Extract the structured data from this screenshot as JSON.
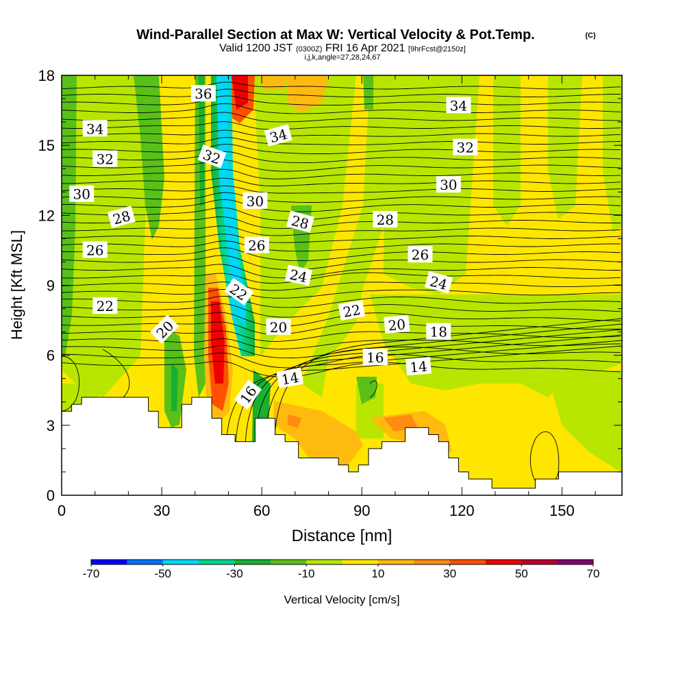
{
  "title": {
    "main": "Wind-Parallel Section at Max W: Vertical Velocity & Pot.Temp.",
    "copyright": "(C)",
    "valid_prefix": "Valid 1200 JST",
    "valid_utc": "(0300Z)",
    "valid_date": "FRI 16 Apr 2021",
    "forecast": "[9hrFcst@2150z]",
    "indices": "i,j,k,angle=27,28,24,67"
  },
  "chart_data": {
    "type": "heatmap",
    "xlabel": "Distance [nm]",
    "ylabel": "Height [Kft MSL]",
    "xlim": [
      0,
      168
    ],
    "ylim": [
      0,
      18
    ],
    "x_ticks": [
      "0",
      "30",
      "60",
      "90",
      "120",
      "150"
    ],
    "y_ticks": [
      "0",
      "3",
      "6",
      "9",
      "12",
      "15",
      "18"
    ],
    "colorbar": {
      "label": "Vertical Velocity [cm/s]",
      "tick_labels": [
        "-70",
        "-50",
        "-30",
        "-10",
        "10",
        "30",
        "50",
        "70"
      ],
      "bins": [
        -70,
        -60,
        -50,
        -40,
        -30,
        -20,
        -10,
        0,
        10,
        20,
        30,
        40,
        50,
        60,
        70
      ],
      "colors": [
        "#0000ff",
        "#0070ff",
        "#00d8f8",
        "#00d890",
        "#18b030",
        "#58c018",
        "#b8e600",
        "#ffe600",
        "#ffba10",
        "#ff8c10",
        "#ff5000",
        "#ee0000",
        "#b80030",
        "#840070"
      ]
    },
    "contour_labels": [
      {
        "text": "34",
        "x": 10,
        "y": 15.7,
        "angle": 0
      },
      {
        "text": "32",
        "x": 13,
        "y": 14.4,
        "angle": 0
      },
      {
        "text": "30",
        "x": 6,
        "y": 12.9,
        "angle": 0
      },
      {
        "text": "28",
        "x": 18,
        "y": 11.9,
        "angle": -15
      },
      {
        "text": "26",
        "x": 10,
        "y": 10.5,
        "angle": 0
      },
      {
        "text": "22",
        "x": 13,
        "y": 8.1,
        "angle": 0
      },
      {
        "text": "20",
        "x": 31,
        "y": 7.1,
        "angle": -45
      },
      {
        "text": "36",
        "x": 42.5,
        "y": 17.2,
        "angle": 0
      },
      {
        "text": "32",
        "x": 45,
        "y": 14.5,
        "angle": 20
      },
      {
        "text": "30",
        "x": 58,
        "y": 12.6,
        "angle": 0
      },
      {
        "text": "26",
        "x": 58.5,
        "y": 10.7,
        "angle": 0
      },
      {
        "text": "22",
        "x": 53,
        "y": 8.7,
        "angle": 35
      },
      {
        "text": "20",
        "x": 65,
        "y": 7.2,
        "angle": 0
      },
      {
        "text": "16",
        "x": 56,
        "y": 4.3,
        "angle": -55
      },
      {
        "text": "14",
        "x": 68.5,
        "y": 5.0,
        "angle": -10
      },
      {
        "text": "34",
        "x": 65,
        "y": 15.4,
        "angle": -15
      },
      {
        "text": "28",
        "x": 71.5,
        "y": 11.7,
        "angle": 15
      },
      {
        "text": "24",
        "x": 71,
        "y": 9.4,
        "angle": 12
      },
      {
        "text": "22",
        "x": 87,
        "y": 7.9,
        "angle": -10
      },
      {
        "text": "16",
        "x": 94,
        "y": 5.9,
        "angle": 0
      },
      {
        "text": "20",
        "x": 100.5,
        "y": 7.3,
        "angle": -5
      },
      {
        "text": "28",
        "x": 97,
        "y": 11.8,
        "angle": 0
      },
      {
        "text": "26",
        "x": 107.5,
        "y": 10.3,
        "angle": 0
      },
      {
        "text": "24",
        "x": 113,
        "y": 9.1,
        "angle": 15
      },
      {
        "text": "18",
        "x": 113,
        "y": 7.0,
        "angle": 0
      },
      {
        "text": "14",
        "x": 107,
        "y": 5.5,
        "angle": -5
      },
      {
        "text": "30",
        "x": 116,
        "y": 13.3,
        "angle": 0
      },
      {
        "text": "32",
        "x": 121,
        "y": 14.9,
        "angle": 0
      },
      {
        "text": "34",
        "x": 119,
        "y": 16.7,
        "angle": 0
      }
    ],
    "terrain": [
      [
        0,
        3.6
      ],
      [
        3,
        3.6
      ],
      [
        3,
        3.9
      ],
      [
        6,
        3.9
      ],
      [
        6,
        4.2
      ],
      [
        26,
        4.2
      ],
      [
        26,
        3.6
      ],
      [
        29,
        3.6
      ],
      [
        29,
        2.9
      ],
      [
        36,
        2.9
      ],
      [
        36,
        3.9
      ],
      [
        39,
        3.9
      ],
      [
        39,
        4.2
      ],
      [
        45,
        4.2
      ],
      [
        45,
        3.3
      ],
      [
        48,
        3.3
      ],
      [
        48,
        2.6
      ],
      [
        52,
        2.6
      ],
      [
        52,
        2.3
      ],
      [
        58,
        2.3
      ],
      [
        58,
        3.3
      ],
      [
        64,
        3.3
      ],
      [
        64,
        2.6
      ],
      [
        67,
        2.6
      ],
      [
        67,
        2.3
      ],
      [
        71,
        2.3
      ],
      [
        71,
        1.6
      ],
      [
        83,
        1.6
      ],
      [
        83,
        1.3
      ],
      [
        86,
        1.3
      ],
      [
        86,
        1.0
      ],
      [
        89,
        1.0
      ],
      [
        89,
        1.3
      ],
      [
        92,
        1.3
      ],
      [
        92,
        2.0
      ],
      [
        96,
        2.0
      ],
      [
        96,
        2.3
      ],
      [
        103,
        2.3
      ],
      [
        103,
        2.9
      ],
      [
        110,
        2.9
      ],
      [
        110,
        2.6
      ],
      [
        113,
        2.6
      ],
      [
        113,
        2.3
      ],
      [
        116,
        2.3
      ],
      [
        116,
        1.6
      ],
      [
        119,
        1.6
      ],
      [
        119,
        1.0
      ],
      [
        122,
        1.0
      ],
      [
        122,
        0.7
      ],
      [
        129,
        0.7
      ],
      [
        129,
        0.3
      ],
      [
        142,
        0.3
      ],
      [
        142,
        0.7
      ],
      [
        149,
        0.7
      ],
      [
        149,
        1.0
      ],
      [
        168,
        1.0
      ]
    ]
  }
}
